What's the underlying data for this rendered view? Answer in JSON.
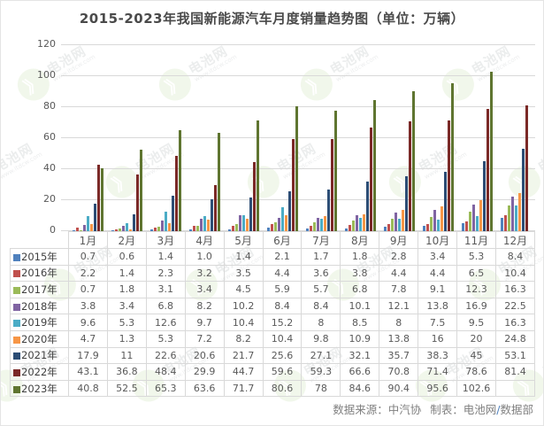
{
  "title": "2015-2023年我国新能源汽车月度销量趋势图（单位：万辆）",
  "watermark": {
    "text": "电池网",
    "url": "www.itdcw.com",
    "logo_glyph": "》"
  },
  "footer": {
    "source_label": "数据来源：中汽协",
    "maker_label": "制表：电池网",
    "slash": "/",
    "dept": "数据部"
  },
  "chart_data": {
    "type": "bar",
    "title": "2015-2023年我国新能源汽车月度销量趋势图",
    "unit": "万辆",
    "categories": [
      "1月",
      "2月",
      "3月",
      "4月",
      "5月",
      "6月",
      "7月",
      "8月",
      "9月",
      "10月",
      "11月",
      "12月"
    ],
    "series": [
      {
        "name": "2015年",
        "color": "#4f81bd",
        "values": [
          0.7,
          0.6,
          1.4,
          1.0,
          1.4,
          2.1,
          1.7,
          1.8,
          2.8,
          3.4,
          5.3,
          8.4
        ],
        "display": [
          "0.7",
          "0.6",
          "1.4",
          "1.0",
          "1.4",
          "2.1",
          "1.7",
          "1.8",
          "2.8",
          "3.4",
          "5.3",
          "8.4"
        ]
      },
      {
        "name": "2016年",
        "color": "#c0504d",
        "values": [
          2.2,
          1.4,
          2.3,
          3.2,
          3.5,
          4.4,
          3.6,
          3.8,
          4.4,
          4.4,
          6.5,
          10.4
        ],
        "display": [
          "2.2",
          "1.4",
          "2.3",
          "3.2",
          "3.5",
          "4.4",
          "3.6",
          "3.8",
          "4.4",
          "4.4",
          "6.5",
          "10.4"
        ]
      },
      {
        "name": "2017年",
        "color": "#9bbb59",
        "values": [
          0.7,
          1.8,
          3.1,
          3.4,
          4.5,
          5.9,
          5.7,
          6.8,
          7.8,
          9.1,
          12.3,
          16.3
        ],
        "display": [
          "0.7",
          "1.8",
          "3.1",
          "3.4",
          "4.5",
          "5.9",
          "5.7",
          "6.8",
          "7.8",
          "9.1",
          "12.3",
          "16.3"
        ]
      },
      {
        "name": "2018年",
        "color": "#8064a2",
        "values": [
          3.8,
          3.4,
          6.8,
          8.2,
          10.2,
          8.4,
          8.4,
          10.1,
          12.1,
          13.8,
          16.9,
          22.5
        ],
        "display": [
          "3.8",
          "3.4",
          "6.8",
          "8.2",
          "10.2",
          "8.4",
          "8.4",
          "10.1",
          "12.1",
          "13.8",
          "16.9",
          "22.5"
        ]
      },
      {
        "name": "2019年",
        "color": "#4bacc6",
        "values": [
          9.6,
          5.3,
          12.6,
          9.7,
          10.4,
          15.2,
          8,
          8.5,
          8,
          7.5,
          9.5,
          16.3
        ],
        "display": [
          "9.6",
          "5.3",
          "12.6",
          "9.7",
          "10.4",
          "15.2",
          "8",
          "8.5",
          "8",
          "7.5",
          "9.5",
          "16.3"
        ]
      },
      {
        "name": "2020年",
        "color": "#f79646",
        "values": [
          4.7,
          1.3,
          5.3,
          7.2,
          8.2,
          10.4,
          9.8,
          10.9,
          13.8,
          16,
          20,
          24.8
        ],
        "display": [
          "4.7",
          "1.3",
          "5.3",
          "7.2",
          "8.2",
          "10.4",
          "9.8",
          "10.9",
          "13.8",
          "16",
          "20",
          "24.8"
        ]
      },
      {
        "name": "2021年",
        "color": "#2c4d75",
        "values": [
          17.9,
          11,
          22.6,
          20.6,
          21.7,
          25.6,
          27.1,
          32.1,
          35.7,
          38.3,
          45,
          53.1
        ],
        "display": [
          "17.9",
          "11",
          "22.6",
          "20.6",
          "21.7",
          "25.6",
          "27.1",
          "32.1",
          "35.7",
          "38.3",
          "45",
          "53.1"
        ]
      },
      {
        "name": "2022年",
        "color": "#7b2927",
        "values": [
          43.1,
          36.8,
          48.4,
          29.9,
          44.7,
          59.6,
          59.3,
          66.6,
          70.8,
          71.4,
          78.6,
          81.4
        ],
        "display": [
          "43.1",
          "36.8",
          "48.4",
          "29.9",
          "44.7",
          "59.6",
          "59.3",
          "66.6",
          "70.8",
          "71.4",
          "78.6",
          "81.4"
        ]
      },
      {
        "name": "2023年",
        "color": "#5f7530",
        "values": [
          40.8,
          52.5,
          65.3,
          63.6,
          71.7,
          80.6,
          78,
          84.6,
          90.4,
          95.6,
          102.6,
          null
        ],
        "display": [
          "40.8",
          "52.5",
          "65.3",
          "63.6",
          "71.7",
          "80.6",
          "78",
          "84.6",
          "90.4",
          "95.6",
          "102.6",
          ""
        ]
      }
    ],
    "ylim": [
      0,
      120
    ],
    "yticks": [
      0,
      20,
      40,
      60,
      80,
      100,
      120
    ],
    "xlabel": "",
    "ylabel": "",
    "grid": true,
    "legend_position": "data-table-left-column"
  }
}
